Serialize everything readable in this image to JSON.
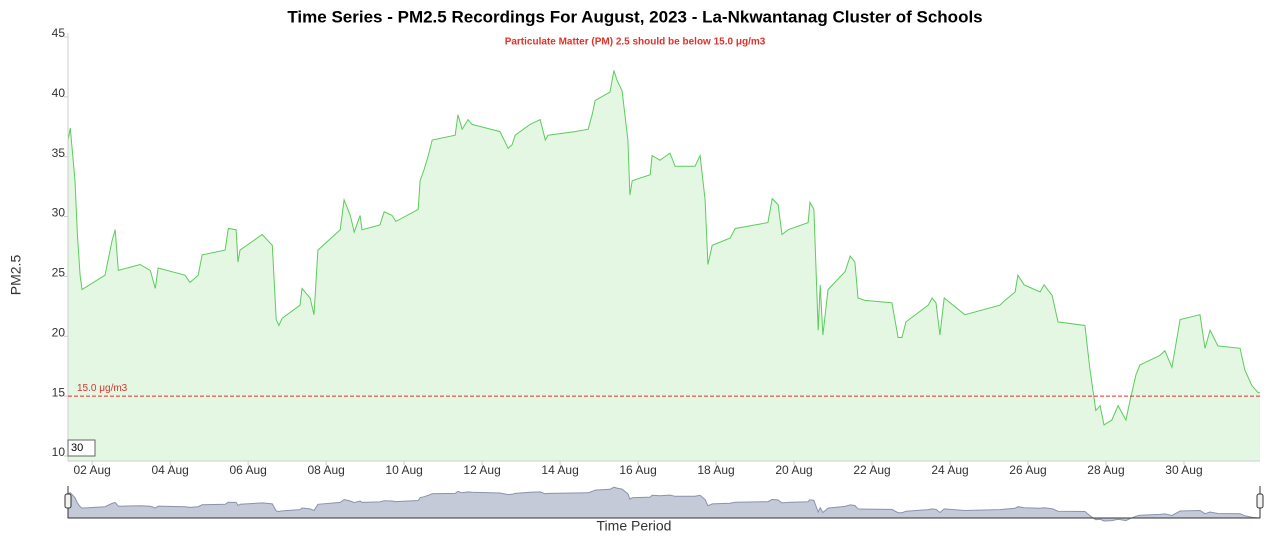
{
  "chart_data": {
    "type": "area",
    "title": "Time Series - PM2.5 Recordings For August, 2023 - La-Nkwantanag Cluster of Schools",
    "subtitle": "Particulate Matter (PM) 2.5 should be below 15.0 μg/m3",
    "y_label": "PM2.5",
    "x_label": "Time Period",
    "zoom_label": "30",
    "threshold": {
      "value": 15,
      "label": "15.0 μg/m3",
      "color": "#e0312b"
    },
    "xlim": [
      1.38,
      31.95
    ],
    "xticks": [
      {
        "value": 2,
        "label": "02 Aug"
      },
      {
        "value": 4,
        "label": "04 Aug"
      },
      {
        "value": 6,
        "label": "06 Aug"
      },
      {
        "value": 8,
        "label": "08 Aug"
      },
      {
        "value": 10,
        "label": "10 Aug"
      },
      {
        "value": 12,
        "label": "12 Aug"
      },
      {
        "value": 14,
        "label": "14 Aug"
      },
      {
        "value": 16,
        "label": "16 Aug"
      },
      {
        "value": 18,
        "label": "18 Aug"
      },
      {
        "value": 20,
        "label": "20 Aug"
      },
      {
        "value": 22,
        "label": "22 Aug"
      },
      {
        "value": 24,
        "label": "24 Aug"
      },
      {
        "value": 26,
        "label": "26 Aug"
      },
      {
        "value": 28,
        "label": "28 Aug"
      },
      {
        "value": 30,
        "label": "30 Aug"
      }
    ],
    "ylim": [
      10,
      45
    ],
    "yticks": [
      10,
      15,
      20,
      25,
      30,
      35,
      40,
      45
    ],
    "grid": false,
    "series": [
      {
        "color": "#5ccc5c",
        "fill": "#e3f7e3",
        "x": [
          1.38,
          1.44,
          1.56,
          1.62,
          1.69,
          1.74,
          2.33,
          2.51,
          2.59,
          2.67,
          3.23,
          3.49,
          3.62,
          3.69,
          4.38,
          4.51,
          4.72,
          4.82,
          5.41,
          5.49,
          5.69,
          5.74,
          5.79,
          6.36,
          6.62,
          6.72,
          6.79,
          6.87,
          7.33,
          7.38,
          7.59,
          7.69,
          7.79,
          8.36,
          8.46,
          8.62,
          8.72,
          8.87,
          8.92,
          9.38,
          9.49,
          9.69,
          9.79,
          10.36,
          10.41,
          10.51,
          10.62,
          10.72,
          11.31,
          11.38,
          11.49,
          11.64,
          11.74,
          12.46,
          12.67,
          12.77,
          12.85,
          13.23,
          13.49,
          13.62,
          13.69,
          14.38,
          14.72,
          14.82,
          14.9,
          15.28,
          15.38,
          15.46,
          15.59,
          15.74,
          15.79,
          15.85,
          16.31,
          16.36,
          16.56,
          16.82,
          16.95,
          17.46,
          17.59,
          17.72,
          17.79,
          17.9,
          18.36,
          18.49,
          19.33,
          19.44,
          19.59,
          19.69,
          19.85,
          20.36,
          20.41,
          20.51,
          20.62,
          20.67,
          20.74,
          20.87,
          21.31,
          21.44,
          21.56,
          21.64,
          21.82,
          22.51,
          22.67,
          22.77,
          22.87,
          23.44,
          23.54,
          23.64,
          23.74,
          23.85,
          24.38,
          25.28,
          25.41,
          25.67,
          25.74,
          25.9,
          26.31,
          26.41,
          26.62,
          26.77,
          27.46,
          27.59,
          27.74,
          27.85,
          27.95,
          28.15,
          28.31,
          28.51,
          28.62,
          28.77,
          28.87,
          29.38,
          29.51,
          29.69,
          29.9,
          30.41,
          30.54,
          30.67,
          30.87,
          31.44,
          31.56,
          31.74,
          31.9,
          31.95
        ],
        "values": [
          36.4,
          37.4,
          33,
          28.5,
          25.1,
          23.9,
          25.1,
          28,
          28.9,
          25.5,
          26,
          25.5,
          24,
          25.7,
          25.1,
          24.5,
          25.1,
          26.8,
          27.2,
          29,
          28.9,
          26.2,
          27.2,
          28.5,
          27.6,
          21.4,
          20.9,
          21.5,
          22.6,
          24,
          23.2,
          21.8,
          27.2,
          28.9,
          31.4,
          30.1,
          28.7,
          30.1,
          28.9,
          29.3,
          30.4,
          30.1,
          29.6,
          30.6,
          33,
          33.9,
          35.1,
          36.4,
          36.8,
          38.5,
          37.3,
          38.1,
          37.7,
          37.1,
          35.7,
          36,
          36.8,
          37.7,
          38.1,
          36.4,
          36.8,
          37.1,
          37.3,
          38.5,
          39.7,
          40.4,
          42.2,
          41.4,
          40.5,
          36.4,
          31.8,
          33,
          33.5,
          35.1,
          34.7,
          35.3,
          34.2,
          34.2,
          35.1,
          31.4,
          26,
          27.6,
          28.2,
          29,
          29.5,
          31.5,
          31,
          28.5,
          28.9,
          29.5,
          31.2,
          30.6,
          20.5,
          24.3,
          20.1,
          23.9,
          25.4,
          26.7,
          26.2,
          23.2,
          23,
          22.8,
          19.9,
          19.9,
          21.2,
          22.6,
          23.2,
          22.8,
          20.1,
          23.2,
          21.8,
          22.6,
          23,
          23.7,
          25.1,
          24.3,
          23.7,
          24.3,
          23.4,
          21.2,
          20.9,
          17.2,
          13.8,
          14.2,
          12.6,
          13,
          14.2,
          13,
          14.7,
          16.8,
          17.6,
          18.4,
          18.8,
          17.4,
          21.4,
          21.8,
          19,
          20.5,
          19.2,
          19,
          17.2,
          15.9,
          15.3,
          15.3
        ]
      }
    ]
  }
}
